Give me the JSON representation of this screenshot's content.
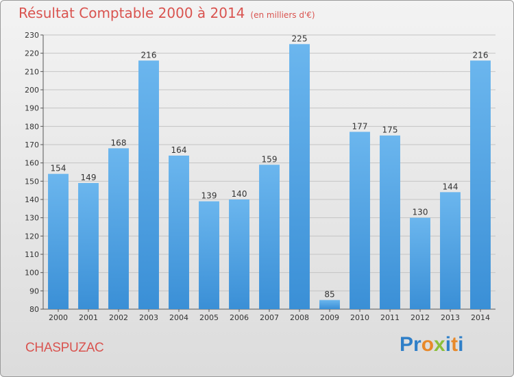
{
  "chart_data": {
    "type": "bar",
    "title": "Résultat Comptable 2000 à 2014",
    "unit_label": "(en milliers d'€)",
    "categories": [
      "2000",
      "2001",
      "2002",
      "2003",
      "2004",
      "2005",
      "2006",
      "2007",
      "2008",
      "2009",
      "2010",
      "2011",
      "2012",
      "2013",
      "2014"
    ],
    "values": [
      154,
      149,
      168,
      216,
      164,
      139,
      140,
      159,
      225,
      85,
      177,
      175,
      130,
      144,
      216
    ],
    "xlabel": "",
    "ylabel": "",
    "ylim": [
      80,
      230
    ],
    "yticks": [
      80,
      90,
      100,
      110,
      120,
      130,
      140,
      150,
      160,
      170,
      180,
      190,
      200,
      210,
      220,
      230
    ],
    "grid": true,
    "bar_color": "#3a8fd6",
    "bar_color_light": "#6bb6ee"
  },
  "footer": {
    "town": "CHASPUZAC",
    "brand_letters": [
      {
        "ch": "P",
        "color": "#2f7fc8"
      },
      {
        "ch": "r",
        "color": "#2f7fc8"
      },
      {
        "ch": "o",
        "color": "#e8892a"
      },
      {
        "ch": "x",
        "color": "#8bbf3a"
      },
      {
        "ch": "i",
        "color": "#2f7fc8"
      },
      {
        "ch": "t",
        "color": "#e8892a"
      },
      {
        "ch": "i",
        "color": "#2f7fc8"
      }
    ]
  }
}
